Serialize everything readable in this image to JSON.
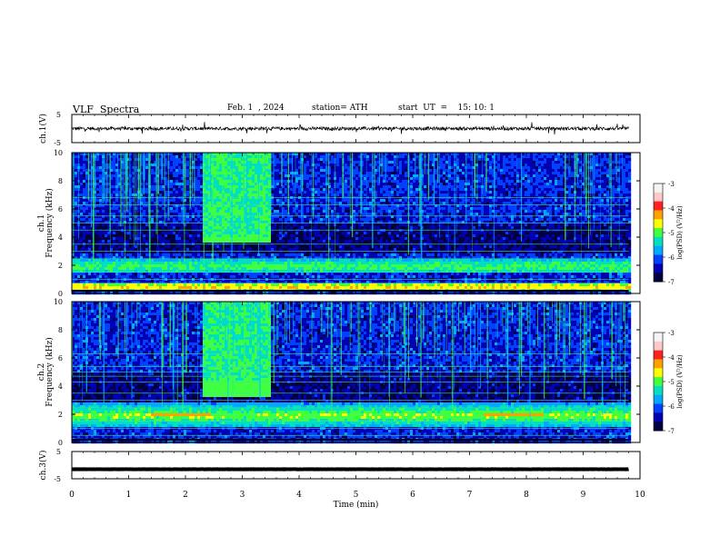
{
  "header": {
    "title": "VLF  Spectra",
    "date": "Feb. 1  , 2024",
    "station": "station= ATH",
    "start": "start  UT  =    15: 10: 1"
  },
  "colorbar": {
    "label": "log(PSD) (V²/Hz)",
    "ticks": [
      "-3",
      "-4",
      "-5",
      "-6",
      "-7"
    ],
    "colors": [
      "#f4f4f4",
      "#ffc8c8",
      "#ff2020",
      "#ffa000",
      "#ffff00",
      "#40ff40",
      "#00e0c0",
      "#00a8ff",
      "#0040ff",
      "#0000b0",
      "#000040"
    ]
  },
  "chart_data": {
    "type": "heatmap",
    "x": {
      "label": "Time  (min)",
      "range": [
        0,
        10
      ],
      "ticks": [
        "0",
        "1",
        "2",
        "3",
        "4",
        "5",
        "6",
        "7",
        "8",
        "9",
        "10"
      ]
    },
    "data_end_min": 9.8,
    "panels": [
      {
        "name": "ch.1(V)",
        "kind": "waveform",
        "ylim": [
          -5,
          5
        ],
        "ticks": [
          "5",
          "-5"
        ],
        "mean": 0,
        "noise_amplitude": 1.2
      },
      {
        "name": "ch.1",
        "kind": "spectrogram",
        "ylabel": "Frequency  (kHz)",
        "ylim": [
          0,
          10
        ],
        "ticks": [
          "0",
          "2",
          "4",
          "6",
          "8",
          "10"
        ],
        "features": [
          {
            "type": "band",
            "f_khz": 2.0,
            "width_khz": 0.5,
            "level": -5.0
          },
          {
            "type": "band",
            "f_khz": 0.5,
            "width_khz": 0.3,
            "level": -4.5
          },
          {
            "type": "lines_khz",
            "values": [
              0.25,
              0.75,
              1.0,
              1.5,
              2.5,
              3.0,
              3.5,
              4.5,
              5.0,
              5.5,
              6.3,
              6.8
            ]
          },
          {
            "type": "burst",
            "t_min": [
              2.3,
              3.5
            ],
            "f_khz": [
              3.7,
              4.1
            ],
            "level": -5.0
          },
          {
            "type": "noise_storm",
            "t_min": [
              2.3,
              3.5
            ],
            "level": -5.2
          }
        ]
      },
      {
        "name": "ch.2",
        "kind": "spectrogram",
        "ylabel": "Frequency  (kHz)",
        "ylim": [
          0,
          10
        ],
        "ticks": [
          "0",
          "2",
          "4",
          "6",
          "8",
          "10"
        ],
        "features": [
          {
            "type": "band",
            "f_khz": 2.0,
            "width_khz": 0.9,
            "level": -4.8
          },
          {
            "type": "hot_segment",
            "t_min": [
              1.35,
              2.4
            ],
            "f_khz": 2.0,
            "level": -4.0
          },
          {
            "type": "hot_segment",
            "t_min": [
              7.2,
              8.3
            ],
            "f_khz": 2.0,
            "level": -4.0
          },
          {
            "type": "lines_khz",
            "values": [
              0.5,
              1.0,
              1.5,
              2.5,
              3.0,
              3.5,
              4.3,
              4.7,
              5.0,
              5.4,
              6.3
            ]
          },
          {
            "type": "burst",
            "t_min": [
              2.3,
              3.5
            ],
            "f_khz": [
              3.4,
              4.4
            ],
            "level": -5.0
          },
          {
            "type": "noise_storm",
            "t_min": [
              2.3,
              3.5
            ],
            "level": -5.2
          }
        ]
      },
      {
        "name": "ch.3(V)",
        "kind": "waveform",
        "ylim": [
          -5,
          5
        ],
        "ticks": [
          "5",
          "-5"
        ],
        "mean": -1.5,
        "noise_amplitude": 0.1
      }
    ]
  }
}
